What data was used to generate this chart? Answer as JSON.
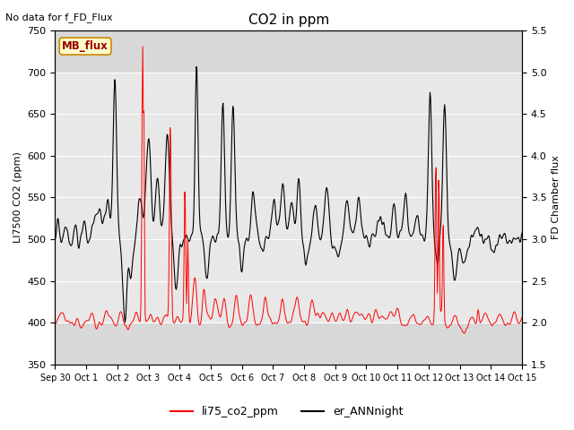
{
  "title": "CO2 in ppm",
  "top_left_text": "No data for f_FD_Flux",
  "ylabel_left": "LI7500 CO2 (ppm)",
  "ylabel_right": "FD Chamber flux",
  "ylim_left": [
    350,
    750
  ],
  "ylim_right": [
    1.5,
    5.5
  ],
  "yticks_left": [
    350,
    400,
    450,
    500,
    550,
    600,
    650,
    700,
    750
  ],
  "yticks_right": [
    1.5,
    2.0,
    2.5,
    3.0,
    3.5,
    4.0,
    4.5,
    5.0,
    5.5
  ],
  "xtick_labels": [
    "Sep 30",
    "Oct 1",
    "Oct 2",
    "Oct 3",
    "Oct 4",
    "Oct 5",
    "Oct 6",
    "Oct 7",
    "Oct 8",
    "Oct 9",
    "Oct 10",
    "Oct 11",
    "Oct 12",
    "Oct 13",
    "Oct 14",
    "Oct 15"
  ],
  "legend_entries": [
    "li75_co2_ppm",
    "er_ANNnight"
  ],
  "legend_colors": [
    "red",
    "black"
  ],
  "mb_flux_label": "MB_flux",
  "outer_bg_color": "#d8d8d8",
  "inner_bg_color": "#e8e8e8",
  "shaded_band_color": "#d0d0d0",
  "line1_color": "red",
  "line2_color": "black",
  "title_fontsize": 11,
  "axis_label_fontsize": 8,
  "tick_fontsize": 8,
  "n_days": 16,
  "n_pts": 768
}
